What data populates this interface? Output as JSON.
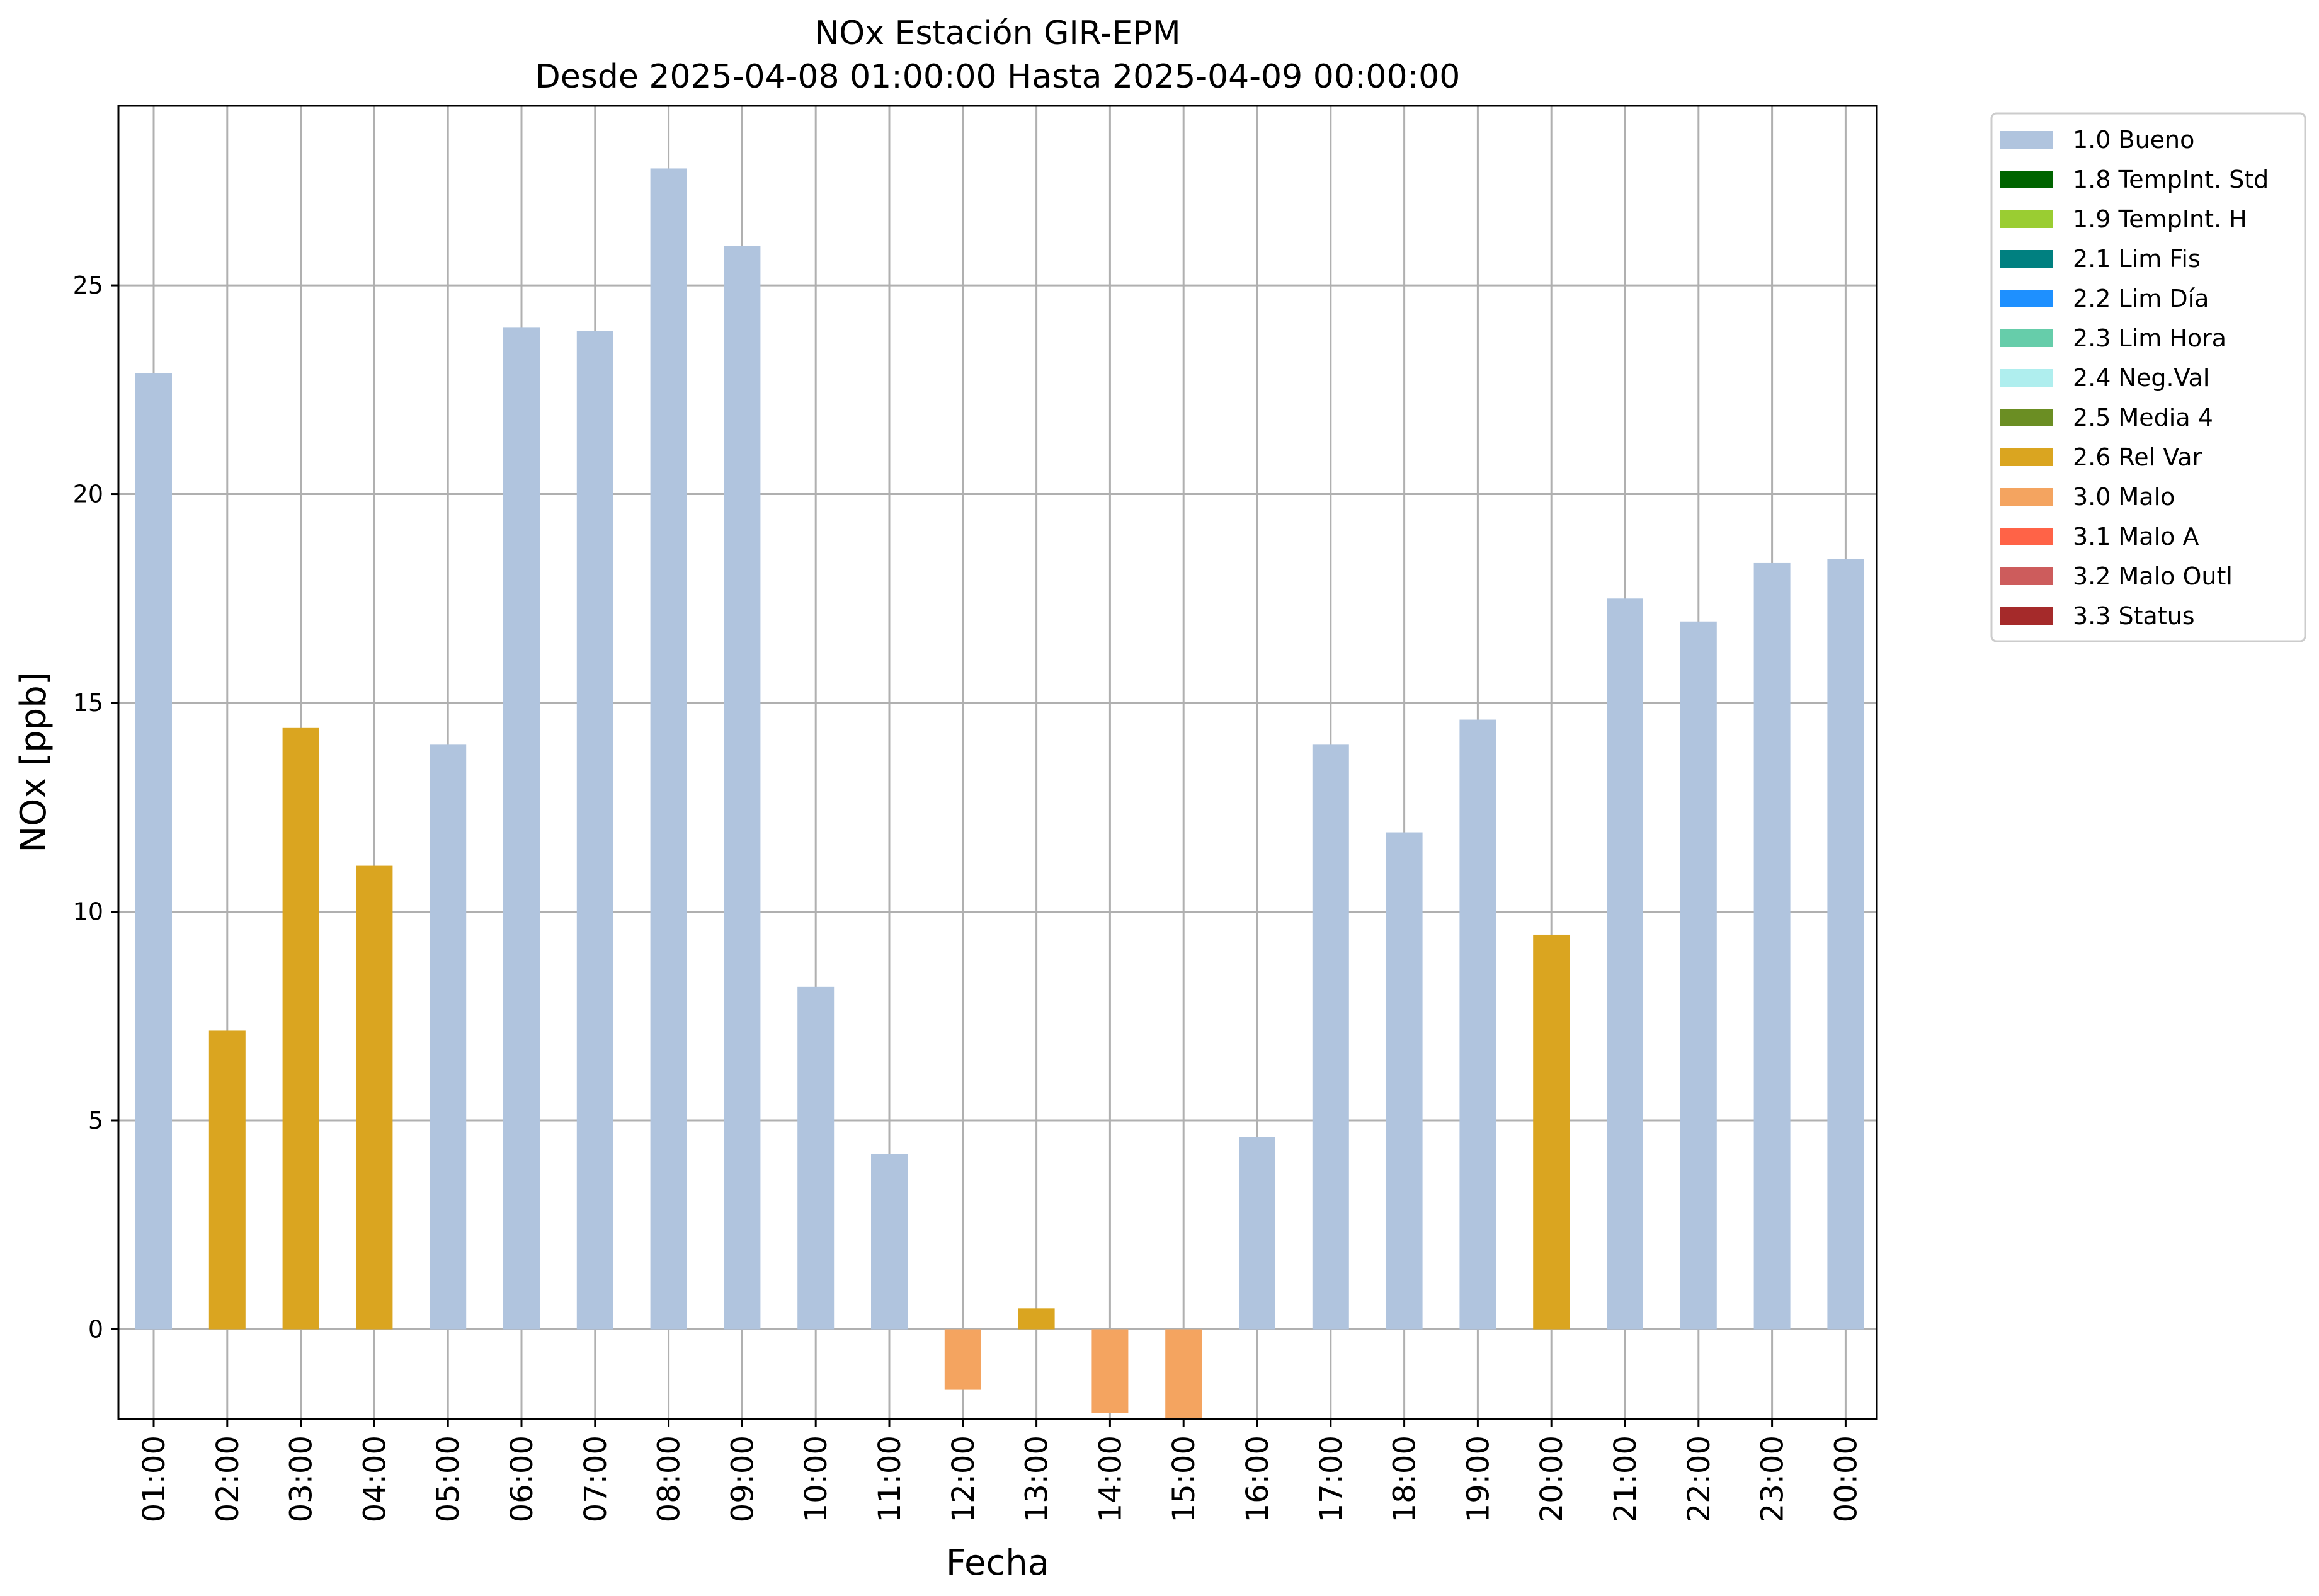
{
  "chart_data": {
    "type": "bar",
    "title": "NOx Estación GIR-EPM",
    "subtitle": "Desde 2025-04-08 01:00:00 Hasta 2025-04-09 00:00:00",
    "xlabel": "Fecha",
    "ylabel": "NOx [ppb]",
    "ylim": [
      -2.15,
      29.3
    ],
    "yticks": [
      "0",
      "5",
      "10",
      "15",
      "20",
      "25"
    ],
    "grid": true,
    "legend_position": "outside-top-right",
    "categories": [
      "01:00",
      "02:00",
      "03:00",
      "04:00",
      "05:00",
      "06:00",
      "07:00",
      "08:00",
      "09:00",
      "10:00",
      "11:00",
      "12:00",
      "13:00",
      "14:00",
      "15:00",
      "16:00",
      "17:00",
      "18:00",
      "19:00",
      "20:00",
      "21:00",
      "22:00",
      "23:00",
      "00:00"
    ],
    "values": [
      22.9,
      7.15,
      14.4,
      11.1,
      14.0,
      24.0,
      23.9,
      27.8,
      25.95,
      8.2,
      4.2,
      -1.45,
      0.5,
      -2.0,
      -2.15,
      4.6,
      14.0,
      11.9,
      14.6,
      9.45,
      17.5,
      16.95,
      18.35,
      18.45
    ],
    "flags": [
      "1.0",
      "2.6",
      "2.6",
      "2.6",
      "1.0",
      "1.0",
      "1.0",
      "1.0",
      "1.0",
      "1.0",
      "1.0",
      "3.0",
      "2.6",
      "3.0",
      "3.0",
      "1.0",
      "1.0",
      "1.0",
      "1.0",
      "2.6",
      "1.0",
      "1.0",
      "1.0",
      "1.0"
    ],
    "legend": [
      {
        "code": "1.0",
        "label": "1.0 Bueno",
        "color": "#b0c4de"
      },
      {
        "code": "1.8",
        "label": "1.8 TempInt. Std",
        "color": "#006400"
      },
      {
        "code": "1.9",
        "label": "1.9 TempInt. H",
        "color": "#9acd32"
      },
      {
        "code": "2.1",
        "label": "2.1 Lim Fis",
        "color": "#008080"
      },
      {
        "code": "2.2",
        "label": "2.2 Lim Día",
        "color": "#1e90ff"
      },
      {
        "code": "2.3",
        "label": "2.3 Lim Hora",
        "color": "#66cdaa"
      },
      {
        "code": "2.4",
        "label": "2.4 Neg.Val",
        "color": "#afeeee"
      },
      {
        "code": "2.5",
        "label": "2.5 Media 4",
        "color": "#6b8e23"
      },
      {
        "code": "2.6",
        "label": "2.6 Rel Var",
        "color": "#daa520"
      },
      {
        "code": "3.0",
        "label": "3.0 Malo",
        "color": "#f4a460"
      },
      {
        "code": "3.1",
        "label": "3.1 Malo A",
        "color": "#ff6347"
      },
      {
        "code": "3.2",
        "label": "3.2 Malo Outl",
        "color": "#cd5c5c"
      },
      {
        "code": "3.3",
        "label": "3.3 Status",
        "color": "#a52a2a"
      }
    ]
  }
}
